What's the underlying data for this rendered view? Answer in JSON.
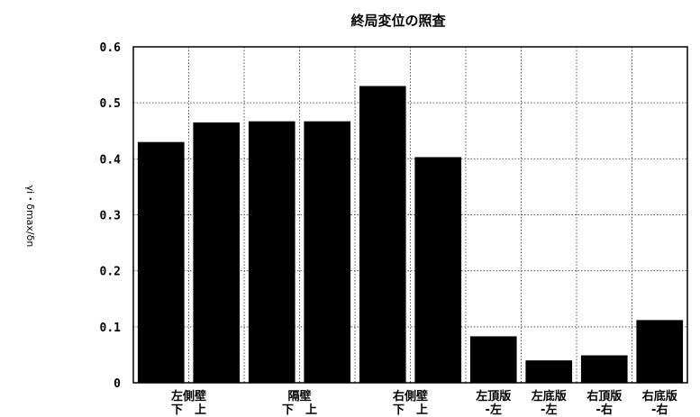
{
  "chart_data": {
    "type": "bar",
    "title": "終局変位の照査",
    "ylabel": "γi・δmax/δn",
    "xlabel": "",
    "ylim": [
      0,
      0.6
    ],
    "yticks": [
      0,
      0.1,
      0.2,
      0.3,
      0.4,
      0.5,
      0.6
    ],
    "ytick_labels": [
      "0",
      "0.1",
      "0.2",
      "0.3",
      "0.4",
      "0.5",
      "0.6"
    ],
    "grid": true,
    "bar_color": "#000000",
    "values": [
      0.43,
      0.465,
      0.467,
      0.467,
      0.53,
      0.403,
      0.083,
      0.04,
      0.049,
      0.112
    ],
    "category_groups": [
      {
        "line1": "左側壁",
        "line2": "下　上"
      },
      {
        "line1": "隔壁",
        "line2": "下　上"
      },
      {
        "line1": "右側壁",
        "line2": "下　上"
      },
      {
        "line1": "左頂版",
        "line2": "-左"
      },
      {
        "line1": "左底版",
        "line2": "-左"
      },
      {
        "line1": "右頂版",
        "line2": "-右"
      },
      {
        "line1": "右底版",
        "line2": "-右"
      }
    ]
  }
}
